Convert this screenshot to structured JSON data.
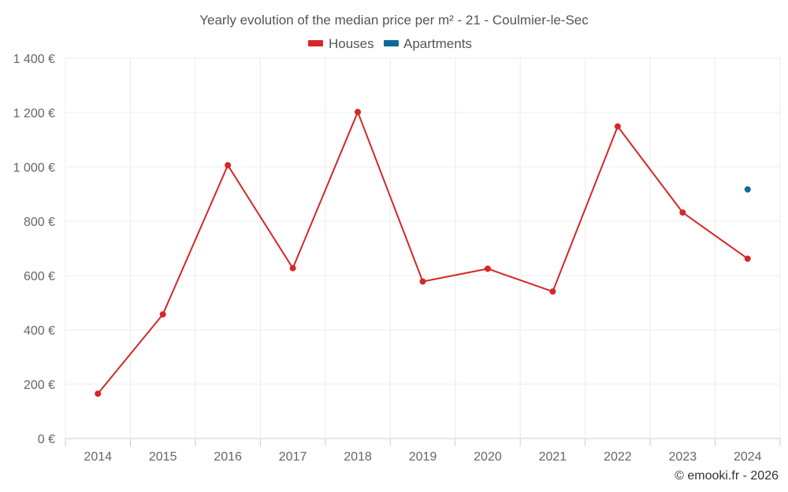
{
  "chart_data": {
    "type": "line",
    "title": "Yearly evolution of the median price per m² - 21 - Coulmier-le-Sec",
    "categories": [
      "2014",
      "2015",
      "2016",
      "2017",
      "2018",
      "2019",
      "2020",
      "2021",
      "2022",
      "2023",
      "2024"
    ],
    "ylim": [
      0,
      1400
    ],
    "yticks": [
      0,
      200,
      400,
      600,
      800,
      1000,
      1200,
      1400
    ],
    "ytick_labels": [
      "0 €",
      "200 €",
      "400 €",
      "600 €",
      "800 €",
      "1 000 €",
      "1 200 €",
      "1 400 €"
    ],
    "grid": true,
    "legend_position": "top-center",
    "series": [
      {
        "name": "Houses",
        "color": "#d62728",
        "values": [
          165,
          457,
          1006,
          627,
          1202,
          578,
          625,
          541,
          1149,
          832,
          662
        ]
      },
      {
        "name": "Apartments",
        "color": "#0a6a9a",
        "values": [
          null,
          null,
          null,
          null,
          null,
          null,
          null,
          null,
          null,
          null,
          917
        ]
      }
    ]
  },
  "credit": "© emooki.fr - 2026"
}
